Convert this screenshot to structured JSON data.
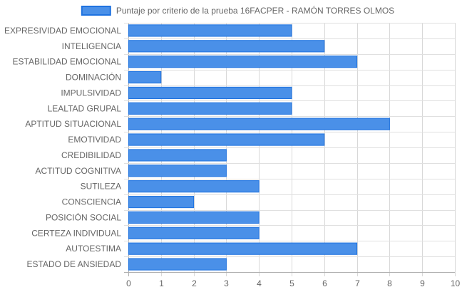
{
  "chart_data": {
    "type": "bar",
    "orientation": "horizontal",
    "categories": [
      "EXPRESIVIDAD EMOCIONAL",
      "INTELIGENCIA",
      "ESTABILIDAD EMOCIONAL",
      "DOMINACIÓN",
      "IMPULSIVIDAD",
      "LEALTAD GRUPAL",
      "APTITUD SITUACIONAL",
      "EMOTIVIDAD",
      "CREDIBILIDAD",
      "ACTITUD COGNITIVA",
      "SUTILEZA",
      "CONSCIENCIA",
      "POSICIÓN SOCIAL",
      "CERTEZA INDIVIDUAL",
      "AUTOESTIMA",
      "ESTADO DE ANSIEDAD"
    ],
    "series": [
      {
        "name": "Puntaje por criterio de la prueba 16FACPER - RAMÓN TORRES OLMOS",
        "values": [
          5,
          6,
          7,
          1,
          5,
          5,
          8,
          6,
          3,
          3,
          4,
          2,
          4,
          4,
          7,
          3
        ],
        "color": "#4a90e8",
        "border_color": "#1e72e0"
      }
    ],
    "xlim": [
      0,
      10
    ],
    "x_ticks": [
      "0",
      "1",
      "2",
      "3",
      "4",
      "5",
      "6",
      "7",
      "8",
      "9",
      "10"
    ],
    "grid": true,
    "legend_position": "top",
    "title": "",
    "xlabel": "",
    "ylabel": ""
  }
}
